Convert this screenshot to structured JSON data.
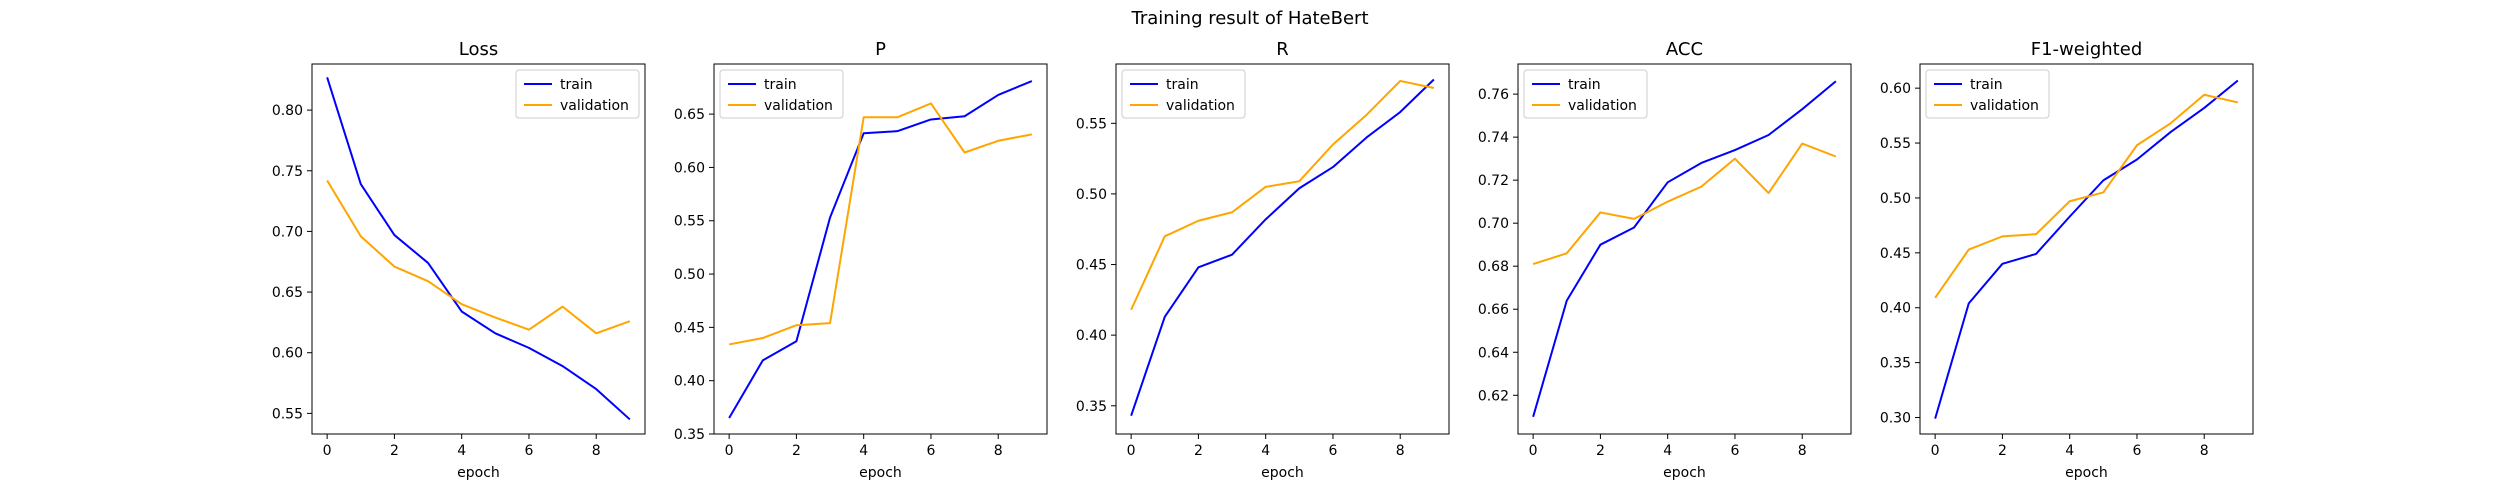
{
  "figure": {
    "suptitle": "Training result of HateBert"
  },
  "chart_data": [
    {
      "type": "line",
      "title": "Loss",
      "xlabel": "epoch",
      "ylabel": "",
      "x": [
        0,
        1,
        2,
        3,
        4,
        5,
        6,
        7,
        8,
        9
      ],
      "xlim": [
        -0.45,
        9.45
      ],
      "ylim": [
        0.533,
        0.838
      ],
      "xticks": [
        0,
        2,
        4,
        6,
        8
      ],
      "yticks": [
        0.55,
        0.6,
        0.65,
        0.7,
        0.75,
        0.8
      ],
      "tick_decimals": 2,
      "legend": "top-right",
      "series": [
        {
          "name": "train",
          "color": "#0000ff",
          "values": [
            0.827,
            0.739,
            0.697,
            0.674,
            0.634,
            0.616,
            0.604,
            0.589,
            0.57,
            0.545
          ]
        },
        {
          "name": "validation",
          "color": "#ffa500",
          "values": [
            0.742,
            0.696,
            0.671,
            0.659,
            0.64,
            0.629,
            0.619,
            0.638,
            0.616,
            0.626
          ]
        }
      ]
    },
    {
      "type": "line",
      "title": "P",
      "xlabel": "epoch",
      "ylabel": "",
      "x": [
        0,
        1,
        2,
        3,
        4,
        5,
        6,
        7,
        8,
        9
      ],
      "xlim": [
        -0.45,
        9.45
      ],
      "ylim": [
        0.35,
        0.697
      ],
      "xticks": [
        0,
        2,
        4,
        6,
        8
      ],
      "yticks": [
        0.35,
        0.4,
        0.45,
        0.5,
        0.55,
        0.6,
        0.65
      ],
      "tick_decimals": 2,
      "legend": "top-left",
      "series": [
        {
          "name": "train",
          "color": "#0000ff",
          "values": [
            0.365,
            0.419,
            0.437,
            0.553,
            0.632,
            0.634,
            0.645,
            0.648,
            0.668,
            0.681
          ]
        },
        {
          "name": "validation",
          "color": "#ffa500",
          "values": [
            0.434,
            0.44,
            0.452,
            0.454,
            0.647,
            0.647,
            0.66,
            0.614,
            0.625,
            0.631
          ]
        }
      ]
    },
    {
      "type": "line",
      "title": "R",
      "xlabel": "epoch",
      "ylabel": "",
      "x": [
        0,
        1,
        2,
        3,
        4,
        5,
        6,
        7,
        8,
        9
      ],
      "xlim": [
        -0.45,
        9.45
      ],
      "ylim": [
        0.33,
        0.592
      ],
      "xticks": [
        0,
        2,
        4,
        6,
        8
      ],
      "yticks": [
        0.35,
        0.4,
        0.45,
        0.5,
        0.55
      ],
      "tick_decimals": 2,
      "legend": "top-left",
      "series": [
        {
          "name": "train",
          "color": "#0000ff",
          "values": [
            0.343,
            0.413,
            0.448,
            0.457,
            0.482,
            0.504,
            0.519,
            0.54,
            0.558,
            0.581
          ]
        },
        {
          "name": "validation",
          "color": "#ffa500",
          "values": [
            0.418,
            0.47,
            0.481,
            0.487,
            0.505,
            0.509,
            0.535,
            0.556,
            0.58,
            0.575
          ]
        }
      ]
    },
    {
      "type": "line",
      "title": "ACC",
      "xlabel": "epoch",
      "ylabel": "",
      "x": [
        0,
        1,
        2,
        3,
        4,
        5,
        6,
        7,
        8,
        9
      ],
      "xlim": [
        -0.45,
        9.45
      ],
      "ylim": [
        0.602,
        0.774
      ],
      "xticks": [
        0,
        2,
        4,
        6,
        8
      ],
      "yticks": [
        0.62,
        0.64,
        0.66,
        0.68,
        0.7,
        0.72,
        0.74,
        0.76
      ],
      "tick_decimals": 2,
      "legend": "top-left",
      "series": [
        {
          "name": "train",
          "color": "#0000ff",
          "values": [
            0.61,
            0.664,
            0.69,
            0.698,
            0.719,
            0.728,
            0.734,
            0.741,
            0.753,
            0.766
          ]
        },
        {
          "name": "validation",
          "color": "#ffa500",
          "values": [
            0.681,
            0.686,
            0.705,
            0.702,
            0.71,
            0.717,
            0.73,
            0.714,
            0.737,
            0.731
          ]
        }
      ]
    },
    {
      "type": "line",
      "title": "F1-weighted",
      "xlabel": "epoch",
      "ylabel": "",
      "x": [
        0,
        1,
        2,
        3,
        4,
        5,
        6,
        7,
        8,
        9
      ],
      "xlim": [
        -0.45,
        9.45
      ],
      "ylim": [
        0.285,
        0.622
      ],
      "xticks": [
        0,
        2,
        4,
        6,
        8
      ],
      "yticks": [
        0.3,
        0.35,
        0.4,
        0.45,
        0.5,
        0.55,
        0.6
      ],
      "tick_decimals": 2,
      "legend": "top-left",
      "series": [
        {
          "name": "train",
          "color": "#0000ff",
          "values": [
            0.299,
            0.404,
            0.44,
            0.449,
            0.483,
            0.516,
            0.535,
            0.56,
            0.582,
            0.607
          ]
        },
        {
          "name": "validation",
          "color": "#ffa500",
          "values": [
            0.409,
            0.453,
            0.465,
            0.467,
            0.497,
            0.505,
            0.548,
            0.568,
            0.594,
            0.587
          ]
        }
      ]
    }
  ]
}
